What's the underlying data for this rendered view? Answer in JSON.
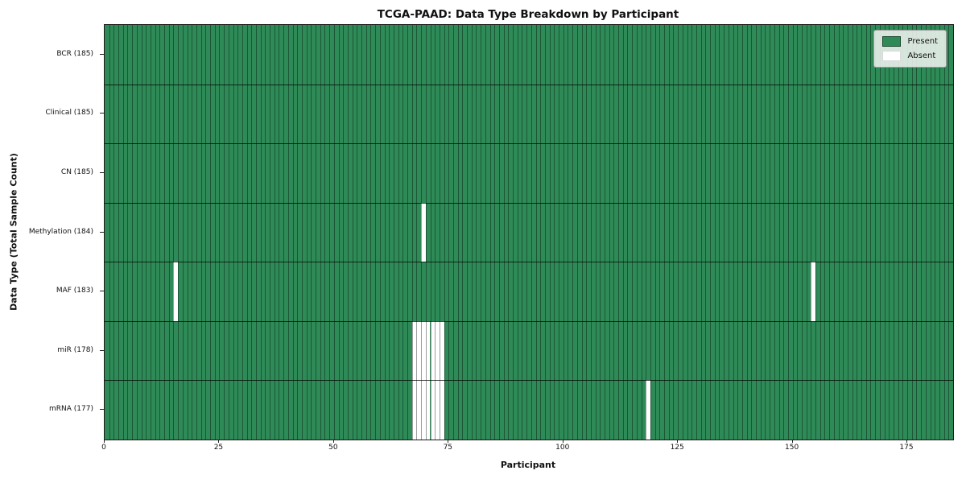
{
  "title": "TCGA-PAAD: Data Type Breakdown by Participant",
  "legend": {
    "present_label": "Present",
    "absent_label": "Absent"
  },
  "chart_data": {
    "type": "heatmap",
    "title": "TCGA-PAAD: Data Type Breakdown by Participant",
    "xlabel": "Participant",
    "ylabel": "Data Type (Total Sample Count)",
    "n_participants": 185,
    "x_ticks": [
      0,
      25,
      50,
      75,
      100,
      125,
      150,
      175
    ],
    "x_range": [
      0,
      185
    ],
    "grid": "cell-edges",
    "legend_position": "upper right",
    "legend_entries": [
      "Present",
      "Absent"
    ],
    "colors": {
      "present": "#2e8b57",
      "absent": "#ffffff",
      "cell_edge": "rgba(0,0,0,0.38)",
      "row_divider": "rgba(0,0,0,0.72)"
    },
    "rows": [
      {
        "label": "BCR",
        "total": 185,
        "absent_participants": []
      },
      {
        "label": "Clinical",
        "total": 185,
        "absent_participants": []
      },
      {
        "label": "CN",
        "total": 185,
        "absent_participants": []
      },
      {
        "label": "Methylation",
        "total": 184,
        "absent_participants": [
          69
        ]
      },
      {
        "label": "MAF",
        "total": 183,
        "absent_participants": [
          15,
          154
        ]
      },
      {
        "label": "miR",
        "total": 178,
        "absent_participants": [
          67,
          68,
          69,
          70,
          71,
          72,
          73
        ]
      },
      {
        "label": "mRNA",
        "total": 177,
        "absent_participants": [
          67,
          68,
          69,
          70,
          71,
          72,
          73,
          118
        ]
      }
    ]
  }
}
